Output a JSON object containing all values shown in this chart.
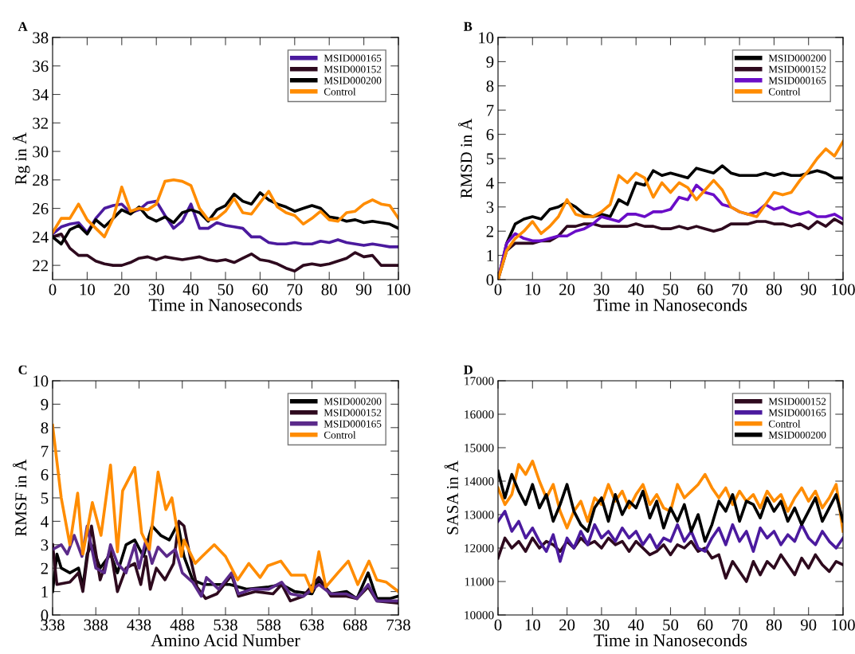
{
  "chart_data": [
    {
      "type": "line",
      "title": "A",
      "xlabel": "Time in Nanoseconds",
      "ylabel": "Rg in Å",
      "legend": "top right",
      "xlim": [
        0,
        100
      ],
      "xticks": [
        0,
        10,
        20,
        30,
        40,
        50,
        60,
        70,
        80,
        90,
        100
      ],
      "ylim": [
        21,
        38
      ],
      "yticks": [
        22,
        24,
        26,
        28,
        30,
        32,
        34,
        36,
        38
      ],
      "x": [
        0,
        2.5,
        5,
        7.5,
        10,
        12.5,
        15,
        17.5,
        20,
        22.5,
        25,
        27.5,
        30,
        32.5,
        35,
        37.5,
        40,
        42.5,
        45,
        47.5,
        50,
        52.5,
        55,
        57.5,
        60,
        62.5,
        65,
        67.5,
        70,
        72.5,
        75,
        77.5,
        80,
        82.5,
        85,
        87.5,
        90,
        92.5,
        95,
        97.5,
        100
      ],
      "series": [
        {
          "name": "MSID000165",
          "color": "#4b1a9e",
          "values": [
            24.2,
            24.7,
            24.9,
            25.0,
            24.3,
            25.3,
            26.0,
            26.2,
            26.3,
            25.7,
            25.9,
            26.4,
            26.5,
            25.5,
            24.6,
            25.1,
            26.3,
            24.6,
            24.6,
            25.0,
            24.8,
            24.7,
            24.6,
            24.0,
            24.0,
            23.6,
            23.5,
            23.5,
            23.6,
            23.5,
            23.5,
            23.7,
            23.6,
            23.8,
            23.6,
            23.5,
            23.4,
            23.5,
            23.4,
            23.3,
            23.3
          ]
        },
        {
          "name": "MSID000152",
          "color": "#2e0a1e",
          "values": [
            24.0,
            24.2,
            23.2,
            22.7,
            22.7,
            22.3,
            22.1,
            22.0,
            22.0,
            22.2,
            22.5,
            22.6,
            22.4,
            22.6,
            22.5,
            22.4,
            22.5,
            22.6,
            22.4,
            22.3,
            22.4,
            22.2,
            22.5,
            22.8,
            22.4,
            22.3,
            22.1,
            21.8,
            21.6,
            22.0,
            22.1,
            22.0,
            22.1,
            22.3,
            22.5,
            22.9,
            22.6,
            22.7,
            22.0,
            22.0,
            22.0
          ]
        },
        {
          "name": "MSID000200",
          "color": "#000000",
          "values": [
            24.0,
            23.5,
            24.5,
            24.8,
            24.2,
            25.2,
            24.7,
            25.3,
            25.9,
            25.6,
            26.1,
            25.4,
            25.1,
            25.4,
            25.0,
            25.7,
            25.9,
            25.7,
            25.1,
            25.9,
            26.2,
            27.0,
            26.5,
            26.3,
            27.1,
            26.6,
            26.3,
            26.1,
            25.8,
            26.0,
            26.2,
            26.0,
            25.4,
            25.3,
            25.1,
            25.2,
            25.0,
            25.1,
            25.0,
            24.9,
            24.6
          ]
        },
        {
          "name": "Control",
          "color": "#ff8c00",
          "values": [
            24.3,
            25.3,
            25.3,
            26.3,
            25.2,
            24.6,
            24.0,
            25.3,
            27.5,
            25.8,
            26.0,
            25.9,
            26.3,
            27.9,
            28.0,
            27.9,
            27.6,
            26.0,
            25.2,
            25.3,
            25.8,
            26.7,
            25.7,
            25.6,
            26.4,
            27.2,
            26.1,
            25.7,
            25.5,
            24.9,
            25.3,
            25.8,
            25.2,
            25.1,
            25.7,
            25.8,
            26.3,
            26.6,
            26.3,
            26.2,
            25.3
          ]
        }
      ]
    },
    {
      "type": "line",
      "title": "B",
      "xlabel": "Time in Nanoseconds",
      "ylabel": "RMSD in Å",
      "legend": "top right",
      "xlim": [
        0,
        100
      ],
      "xticks": [
        0,
        10,
        20,
        30,
        40,
        50,
        60,
        70,
        80,
        90,
        100
      ],
      "ylim": [
        0,
        10
      ],
      "yticks": [
        0,
        1,
        2,
        3,
        4,
        5,
        6,
        7,
        8,
        9,
        10
      ],
      "x": [
        0,
        2.5,
        5,
        7.5,
        10,
        12.5,
        15,
        17.5,
        20,
        22.5,
        25,
        27.5,
        30,
        32.5,
        35,
        37.5,
        40,
        42.5,
        45,
        47.5,
        50,
        52.5,
        55,
        57.5,
        60,
        62.5,
        65,
        67.5,
        70,
        72.5,
        75,
        77.5,
        80,
        82.5,
        85,
        87.5,
        90,
        92.5,
        95,
        97.5,
        100
      ],
      "series": [
        {
          "name": "MSID000200",
          "color": "#000000",
          "values": [
            0,
            1.5,
            2.3,
            2.5,
            2.6,
            2.5,
            2.9,
            3.0,
            3.2,
            3.0,
            2.7,
            2.6,
            2.7,
            2.6,
            3.3,
            3.1,
            4.0,
            3.9,
            4.5,
            4.3,
            4.4,
            4.3,
            4.2,
            4.6,
            4.5,
            4.4,
            4.7,
            4.4,
            4.3,
            4.3,
            4.3,
            4.4,
            4.3,
            4.4,
            4.3,
            4.3,
            4.4,
            4.5,
            4.4,
            4.2,
            4.2
          ]
        },
        {
          "name": "MSID000152",
          "color": "#2e0a1e",
          "values": [
            0,
            1.2,
            1.5,
            1.5,
            1.5,
            1.6,
            1.6,
            1.8,
            2.2,
            2.2,
            2.3,
            2.3,
            2.2,
            2.2,
            2.2,
            2.2,
            2.3,
            2.2,
            2.2,
            2.1,
            2.1,
            2.2,
            2.1,
            2.2,
            2.1,
            2.0,
            2.1,
            2.3,
            2.3,
            2.3,
            2.4,
            2.4,
            2.3,
            2.3,
            2.2,
            2.3,
            2.1,
            2.4,
            2.2,
            2.5,
            2.3
          ]
        },
        {
          "name": "MSID000165",
          "color": "#6a0dc8",
          "values": [
            0,
            1.5,
            1.9,
            1.7,
            1.6,
            1.6,
            1.7,
            1.8,
            1.8,
            2.0,
            2.1,
            2.3,
            2.6,
            2.5,
            2.4,
            2.7,
            2.7,
            2.6,
            2.8,
            2.8,
            2.9,
            3.4,
            3.3,
            3.9,
            3.6,
            3.5,
            3.1,
            3.0,
            2.8,
            2.7,
            2.8,
            3.1,
            2.9,
            3.0,
            2.8,
            2.7,
            2.8,
            2.6,
            2.6,
            2.7,
            2.5
          ]
        },
        {
          "name": "Control",
          "color": "#ff8c00",
          "values": [
            0,
            1.2,
            1.7,
            2.0,
            2.4,
            1.9,
            2.2,
            2.6,
            3.3,
            2.7,
            2.6,
            2.6,
            2.8,
            3.1,
            4.3,
            4.0,
            4.4,
            4.2,
            3.4,
            4.0,
            3.6,
            4.0,
            3.8,
            3.3,
            3.7,
            4.1,
            3.7,
            3.0,
            2.8,
            2.7,
            2.6,
            3.1,
            3.6,
            3.5,
            3.6,
            4.1,
            4.5,
            5.0,
            5.4,
            5.1,
            5.7
          ]
        }
      ]
    },
    {
      "type": "line",
      "title": "C",
      "xlabel": "Amino Acid Number",
      "ylabel": "RMSF in Å",
      "legend": "top right",
      "xlim": [
        338,
        738
      ],
      "xticks": [
        338,
        388,
        438,
        488,
        538,
        588,
        638,
        688,
        738
      ],
      "ylim": [
        0,
        10
      ],
      "yticks": [
        0,
        1,
        2,
        3,
        4,
        5,
        6,
        7,
        8,
        9,
        10
      ],
      "series": [
        {
          "name": "MSID000200",
          "color": "#000000",
          "x": [
            338,
            343,
            348,
            358,
            368,
            373,
            378,
            383,
            393,
            405,
            413,
            423,
            433,
            443,
            453,
            463,
            473,
            483,
            490,
            500,
            513,
            528,
            543,
            563,
            588,
            603,
            618,
            638,
            646,
            660,
            678,
            690,
            703,
            713,
            728,
            738
          ],
          "values": [
            1.0,
            2.6,
            2.0,
            1.8,
            2.0,
            1.2,
            2.6,
            3.0,
            2.0,
            2.6,
            1.8,
            3.0,
            3.2,
            2.5,
            3.8,
            3.4,
            3.2,
            3.9,
            2.5,
            1.5,
            1.3,
            1.3,
            1.3,
            1.1,
            1.2,
            1.3,
            1.0,
            0.9,
            1.5,
            0.9,
            1.0,
            0.7,
            1.8,
            0.7,
            0.7,
            0.8
          ]
        },
        {
          "name": "MSID000152",
          "color": "#2e0a1e",
          "x": [
            338,
            343,
            358,
            368,
            373,
            383,
            393,
            405,
            413,
            423,
            433,
            440,
            446,
            451,
            458,
            468,
            478,
            484,
            490,
            497,
            505,
            515,
            528,
            545,
            553,
            573,
            593,
            603,
            613,
            628,
            646,
            660,
            678,
            690,
            703,
            713,
            738
          ],
          "values": [
            3.0,
            1.3,
            1.4,
            1.8,
            1.0,
            3.8,
            1.5,
            2.8,
            1.0,
            2.0,
            2.2,
            1.3,
            2.5,
            1.1,
            2.0,
            1.5,
            2.2,
            4.0,
            3.8,
            2.5,
            1.2,
            0.7,
            0.9,
            1.7,
            0.8,
            1.0,
            0.9,
            1.3,
            0.6,
            0.8,
            1.6,
            0.8,
            0.8,
            0.7,
            1.2,
            0.6,
            0.5
          ]
        },
        {
          "name": "MSID000165",
          "color": "#5b2a8a",
          "x": [
            338,
            348,
            355,
            363,
            372,
            378,
            388,
            398,
            405,
            413,
            423,
            433,
            438,
            446,
            453,
            460,
            470,
            480,
            488,
            500,
            510,
            516,
            530,
            545,
            553,
            568,
            588,
            603,
            613,
            628,
            646,
            660,
            678,
            690,
            703,
            713,
            738
          ],
          "values": [
            2.8,
            3.0,
            2.6,
            3.4,
            2.5,
            3.8,
            2.0,
            1.8,
            3.0,
            2.2,
            1.8,
            3.0,
            2.0,
            3.2,
            2.2,
            2.9,
            2.5,
            2.8,
            1.8,
            1.4,
            0.8,
            1.6,
            1.1,
            1.8,
            0.9,
            1.1,
            1.1,
            1.4,
            0.9,
            0.8,
            1.3,
            0.9,
            0.9,
            0.7,
            1.3,
            0.6,
            0.6
          ]
        },
        {
          "name": "Control",
          "color": "#ff8c00",
          "x": [
            338,
            348,
            358,
            367,
            373,
            384,
            394,
            405,
            413,
            419,
            433,
            441,
            450,
            460,
            469,
            476,
            487,
            490,
            503,
            511,
            525,
            538,
            552,
            565,
            578,
            587,
            602,
            614,
            630,
            638,
            646,
            654,
            668,
            680,
            691,
            704,
            713,
            724,
            738
          ],
          "values": [
            8.1,
            5.0,
            3.0,
            5.2,
            2.6,
            4.8,
            3.4,
            6.4,
            2.7,
            5.3,
            6.3,
            3.5,
            2.8,
            6.1,
            4.5,
            5.0,
            2.5,
            3.2,
            2.2,
            2.5,
            3.0,
            2.5,
            1.5,
            2.2,
            1.6,
            2.1,
            2.3,
            1.7,
            1.7,
            1.0,
            2.7,
            1.2,
            1.8,
            2.3,
            1.3,
            2.3,
            1.5,
            1.4,
            1.0
          ]
        }
      ]
    },
    {
      "type": "line",
      "title": "D",
      "xlabel": "Time in Nanoseconds",
      "ylabel": "SASA in Å",
      "legend": "top right",
      "xlim": [
        0,
        100
      ],
      "xticks": [
        0,
        10,
        20,
        30,
        40,
        50,
        60,
        70,
        80,
        90,
        100
      ],
      "ylim": [
        10000,
        17000
      ],
      "yticks": [
        10000,
        11000,
        12000,
        13000,
        14000,
        15000,
        16000,
        17000
      ],
      "x": [
        0,
        2,
        4,
        6,
        8,
        10,
        12,
        14,
        16,
        18,
        20,
        22,
        24,
        26,
        28,
        30,
        32,
        34,
        36,
        38,
        40,
        42,
        44,
        46,
        48,
        50,
        52,
        54,
        56,
        58,
        60,
        62,
        64,
        66,
        68,
        70,
        72,
        74,
        76,
        78,
        80,
        82,
        84,
        86,
        88,
        90,
        92,
        94,
        96,
        98,
        100
      ],
      "series": [
        {
          "name": "MSID000152",
          "color": "#2e0a1e",
          "values": [
            11700,
            12300,
            12000,
            12200,
            11900,
            12300,
            12000,
            12200,
            12100,
            11900,
            12200,
            12000,
            12300,
            12100,
            12200,
            12000,
            12300,
            12100,
            12200,
            11900,
            12200,
            12000,
            11800,
            11900,
            12100,
            11800,
            12100,
            12000,
            12200,
            11900,
            12000,
            11700,
            11800,
            11100,
            11600,
            11300,
            11000,
            11600,
            11200,
            11600,
            11400,
            11800,
            11500,
            11200,
            11700,
            11400,
            11800,
            11500,
            11300,
            11600,
            11500
          ]
        },
        {
          "name": "MSID000165",
          "color": "#4b1a9e",
          "values": [
            12800,
            13100,
            12500,
            12800,
            12300,
            12600,
            12200,
            11900,
            12400,
            11600,
            12300,
            12000,
            12500,
            12100,
            12700,
            12300,
            12500,
            12200,
            12600,
            12300,
            12500,
            12100,
            12400,
            12000,
            12300,
            12200,
            12700,
            12200,
            12500,
            12000,
            11900,
            12300,
            12600,
            12100,
            12700,
            12200,
            12500,
            11900,
            12600,
            12300,
            12500,
            12100,
            12400,
            12200,
            12700,
            12300,
            12100,
            12500,
            12200,
            12000,
            12300
          ]
        },
        {
          "name": "Control",
          "color": "#ff8c00",
          "values": [
            13800,
            13300,
            13600,
            14500,
            14200,
            14600,
            14000,
            13500,
            13900,
            13100,
            12600,
            13100,
            13400,
            12800,
            13500,
            13300,
            13900,
            13400,
            13700,
            13200,
            13600,
            13900,
            13300,
            13600,
            13200,
            13100,
            13900,
            13500,
            13700,
            13900,
            14200,
            13800,
            13500,
            13800,
            13300,
            13700,
            13400,
            13600,
            13200,
            13700,
            13400,
            13600,
            13100,
            13500,
            13800,
            13400,
            13700,
            13200,
            13500,
            13900,
            12500
          ]
        },
        {
          "name": "MSID000200",
          "color": "#000000",
          "values": [
            14300,
            13500,
            14200,
            13700,
            13300,
            13900,
            13200,
            13600,
            12800,
            13300,
            13900,
            13100,
            12700,
            12500,
            13200,
            13500,
            12800,
            13600,
            13000,
            13400,
            13200,
            13700,
            12900,
            13400,
            12600,
            13200,
            12800,
            13300,
            12500,
            13000,
            12200,
            12700,
            13400,
            13100,
            13600,
            12800,
            13400,
            13300,
            12900,
            13500,
            13100,
            13400,
            12800,
            13200,
            12700,
            13100,
            13500,
            12800,
            13200,
            13600,
            12800
          ]
        }
      ]
    }
  ]
}
